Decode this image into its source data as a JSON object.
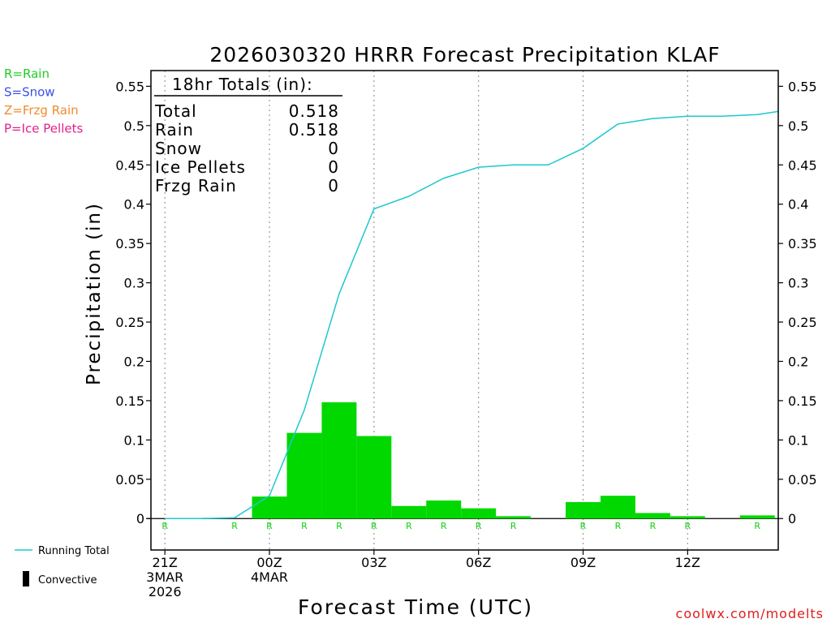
{
  "chart_data": {
    "type": "bar",
    "title": "2026030320 HRRR Forecast Precipitation KLAF",
    "xlabel": "Forecast Time (UTC)",
    "ylabel": "Precipitation (in)",
    "ylim": [
      -0.04,
      0.57
    ],
    "y_ticks": [
      0,
      0.05,
      0.1,
      0.15,
      0.2,
      0.25,
      0.3,
      0.35,
      0.4,
      0.45,
      0.5,
      0.55
    ],
    "y_tick_labels": [
      "0",
      "0.05",
      "0.1",
      "0.15",
      "0.2",
      "0.25",
      "0.3",
      "0.35",
      "0.4",
      "0.45",
      "0.5",
      "0.55"
    ],
    "xlim_hours": [
      20.6,
      38.6
    ],
    "x_ticks": [
      {
        "hour": 21,
        "lines": [
          "21Z",
          "3MAR",
          "2026"
        ]
      },
      {
        "hour": 24,
        "lines": [
          "00Z",
          "4MAR"
        ]
      },
      {
        "hour": 27,
        "lines": [
          "03Z"
        ]
      },
      {
        "hour": 30,
        "lines": [
          "06Z"
        ]
      },
      {
        "hour": 33,
        "lines": [
          "09Z"
        ]
      },
      {
        "hour": 36,
        "lines": [
          "12Z"
        ]
      }
    ],
    "bar_hours": [
      21,
      22,
      23,
      24,
      25,
      26,
      27,
      28,
      29,
      30,
      31,
      32,
      33,
      34,
      35,
      36,
      37,
      38
    ],
    "series": [
      {
        "name": "Rain (hourly)",
        "color": "#00d800",
        "values": [
          0,
          0,
          0,
          0.028,
          0.109,
          0.148,
          0.105,
          0.016,
          0.023,
          0.013,
          0.003,
          0,
          0.021,
          0.029,
          0.007,
          0.003,
          0,
          0.004
        ]
      },
      {
        "name": "Running Total",
        "color": "#1ec8d0",
        "x": [
          21,
          22,
          23,
          24,
          25,
          26,
          27,
          28,
          29,
          30,
          31,
          32,
          33,
          34,
          35,
          36,
          37,
          38,
          38.6
        ],
        "values": [
          0,
          0,
          0.001,
          0.029,
          0.138,
          0.286,
          0.394,
          0.41,
          0.433,
          0.447,
          0.45,
          0.45,
          0.471,
          0.502,
          0.509,
          0.512,
          0.512,
          0.514,
          0.518
        ]
      }
    ],
    "ptype_marks": [
      {
        "hour": 21,
        "label": "R"
      },
      {
        "hour": 23,
        "label": "R"
      },
      {
        "hour": 24,
        "label": "R"
      },
      {
        "hour": 25,
        "label": "R"
      },
      {
        "hour": 26,
        "label": "R"
      },
      {
        "hour": 27,
        "label": "R"
      },
      {
        "hour": 28,
        "label": "R"
      },
      {
        "hour": 29,
        "label": "R"
      },
      {
        "hour": 30,
        "label": "R"
      },
      {
        "hour": 31,
        "label": "R"
      },
      {
        "hour": 33,
        "label": "R"
      },
      {
        "hour": 34,
        "label": "R"
      },
      {
        "hour": 35,
        "label": "R"
      },
      {
        "hour": 36,
        "label": "R"
      },
      {
        "hour": 38,
        "label": "R"
      }
    ],
    "totals_box": {
      "header": "18hr Totals (in):",
      "rows": [
        {
          "label": "Total",
          "value": "0.518"
        },
        {
          "label": "Rain",
          "value": "0.518"
        },
        {
          "label": "Snow",
          "value": "0"
        },
        {
          "label": "Ice Pellets",
          "value": "0"
        },
        {
          "label": "Frzg Rain",
          "value": "0"
        }
      ]
    },
    "ptype_legend": [
      {
        "text": "R=Rain",
        "color": "#22cc22"
      },
      {
        "text": "S=Snow",
        "color": "#3a50e8"
      },
      {
        "text": "Z=Frzg Rain",
        "color": "#f08a30"
      },
      {
        "text": "P=Ice Pellets",
        "color": "#e0208a"
      }
    ],
    "line_legend": {
      "running_total": "Running Total",
      "convective": "Convective"
    },
    "credit": "coolwx.com/modelts"
  }
}
